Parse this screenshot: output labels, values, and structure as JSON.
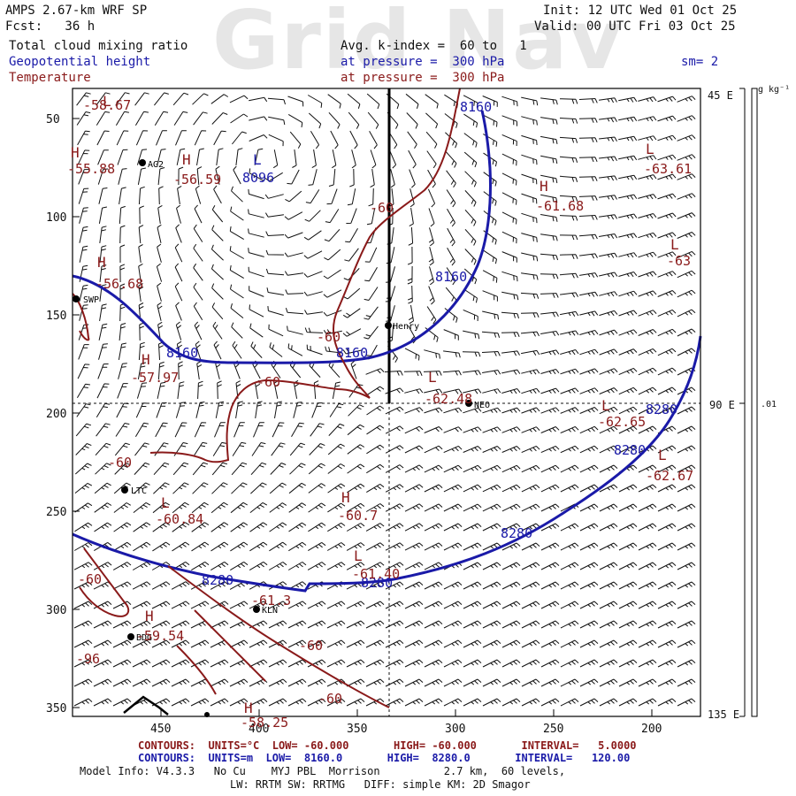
{
  "watermark": "Grid Nav",
  "header": {
    "model": "AMPS 2.67-km WRF SP",
    "fcst": "Fcst:   36 h",
    "init": "Init: 12 UTC Wed 01 Oct 25",
    "valid": "Valid: 00 UTC Fri 03 Oct 25",
    "field1": "Total cloud mixing ratio",
    "field2": "Geopotential height",
    "field3": "Temperature",
    "avg": "Avg. k-index =  60 to   1",
    "pressure1": "at pressure =  300 hPa",
    "pressure2": "at pressure =  300 hPa",
    "sm": "sm= 2"
  },
  "colorbar": {
    "unit": "g kg⁻¹",
    "label": ".01"
  },
  "right_axis": [
    "45 E",
    "90 E",
    "135 E"
  ],
  "y_ticks": [
    "50",
    "100",
    "150",
    "200",
    "250",
    "300",
    "350"
  ],
  "x_ticks": [
    "450",
    "400",
    "350",
    "300",
    "250",
    "200"
  ],
  "stations": [
    {
      "name": "AG2"
    },
    {
      "name": "SWP"
    },
    {
      "name": "Henry"
    },
    {
      "name": "NEO"
    },
    {
      "name": "LTC"
    },
    {
      "name": "KLN"
    },
    {
      "name": "BDG"
    }
  ],
  "height_labels": [
    "8160",
    "8096",
    "8160",
    "8160",
    "8160",
    "8280",
    "8280",
    "8280",
    "8280",
    "8280"
  ],
  "temp_labels": [
    "-58.67",
    "-55.88",
    "-56.59",
    "-60",
    "-61.68",
    "-63.61",
    "-63",
    "-56.68",
    "-60",
    "-60",
    "-57.97",
    "-62.48",
    "-62.65",
    "-62.67",
    "-60",
    "-60.84",
    "-60.7",
    "-61.40",
    "-60",
    "-61.3",
    "-59.54",
    "-60",
    "-60",
    "-96",
    "-58.25"
  ],
  "extrema_letters": [
    "L",
    "H",
    "L",
    "H",
    "L",
    "L",
    "H",
    "H",
    "L",
    "L",
    "L",
    "H",
    "H",
    "H",
    "L",
    "L",
    "H"
  ],
  "footer": {
    "contours_temp": "CONTOURS:  UNITS=°C  LOW= -60.000       HIGH= -60.000       INTERVAL=   5.0000",
    "contours_height": "CONTOURS:  UNITS=m  LOW=  8160.0       HIGH=  8280.0       INTERVAL=   120.00",
    "model_info": "Model Info: V4.3.3   No Cu    MYJ PBL  Morrison          2.7 km,  60 levels,",
    "physics": "LW: RRTM SW: RRTMG   DIFF: simple KM: 2D Smagor"
  },
  "colors": {
    "height": "#1a1aa8",
    "temperature": "#8a1a1a",
    "barb": "#111111"
  }
}
